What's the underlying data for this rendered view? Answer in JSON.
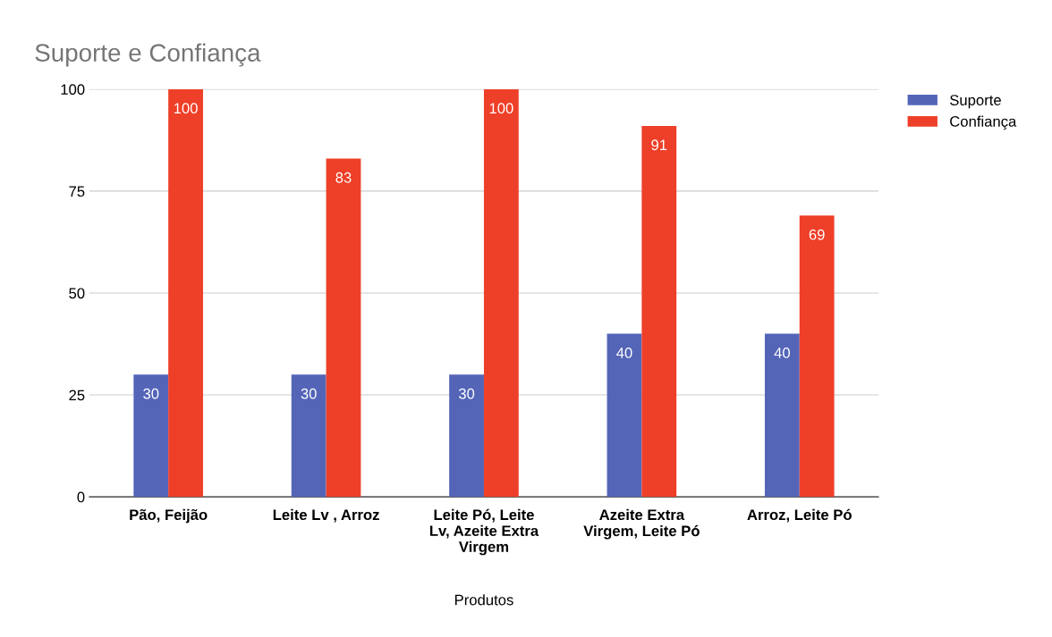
{
  "chart_data": {
    "type": "bar",
    "title": "Suporte e Confiança",
    "xlabel": "Produtos",
    "categories": [
      "Pão, Feijão",
      "Leite Lv , Arroz",
      "Leite Pó, Leite Lv, Azeite Extra Virgem",
      "Azeite Extra Virgem, Leite Pó",
      "Arroz, Leite Pó"
    ],
    "series": [
      {
        "name": "Suporte",
        "color": "#5465b8",
        "values": [
          30,
          30,
          30,
          40,
          40
        ]
      },
      {
        "name": "Confiança",
        "color": "#ee3f28",
        "values": [
          100,
          83,
          100,
          91,
          69
        ]
      }
    ],
    "ylim": [
      0,
      100
    ],
    "yticks": [
      0,
      25,
      50,
      75,
      100
    ],
    "grid": "y",
    "legend": "top right",
    "data_labels": true
  }
}
